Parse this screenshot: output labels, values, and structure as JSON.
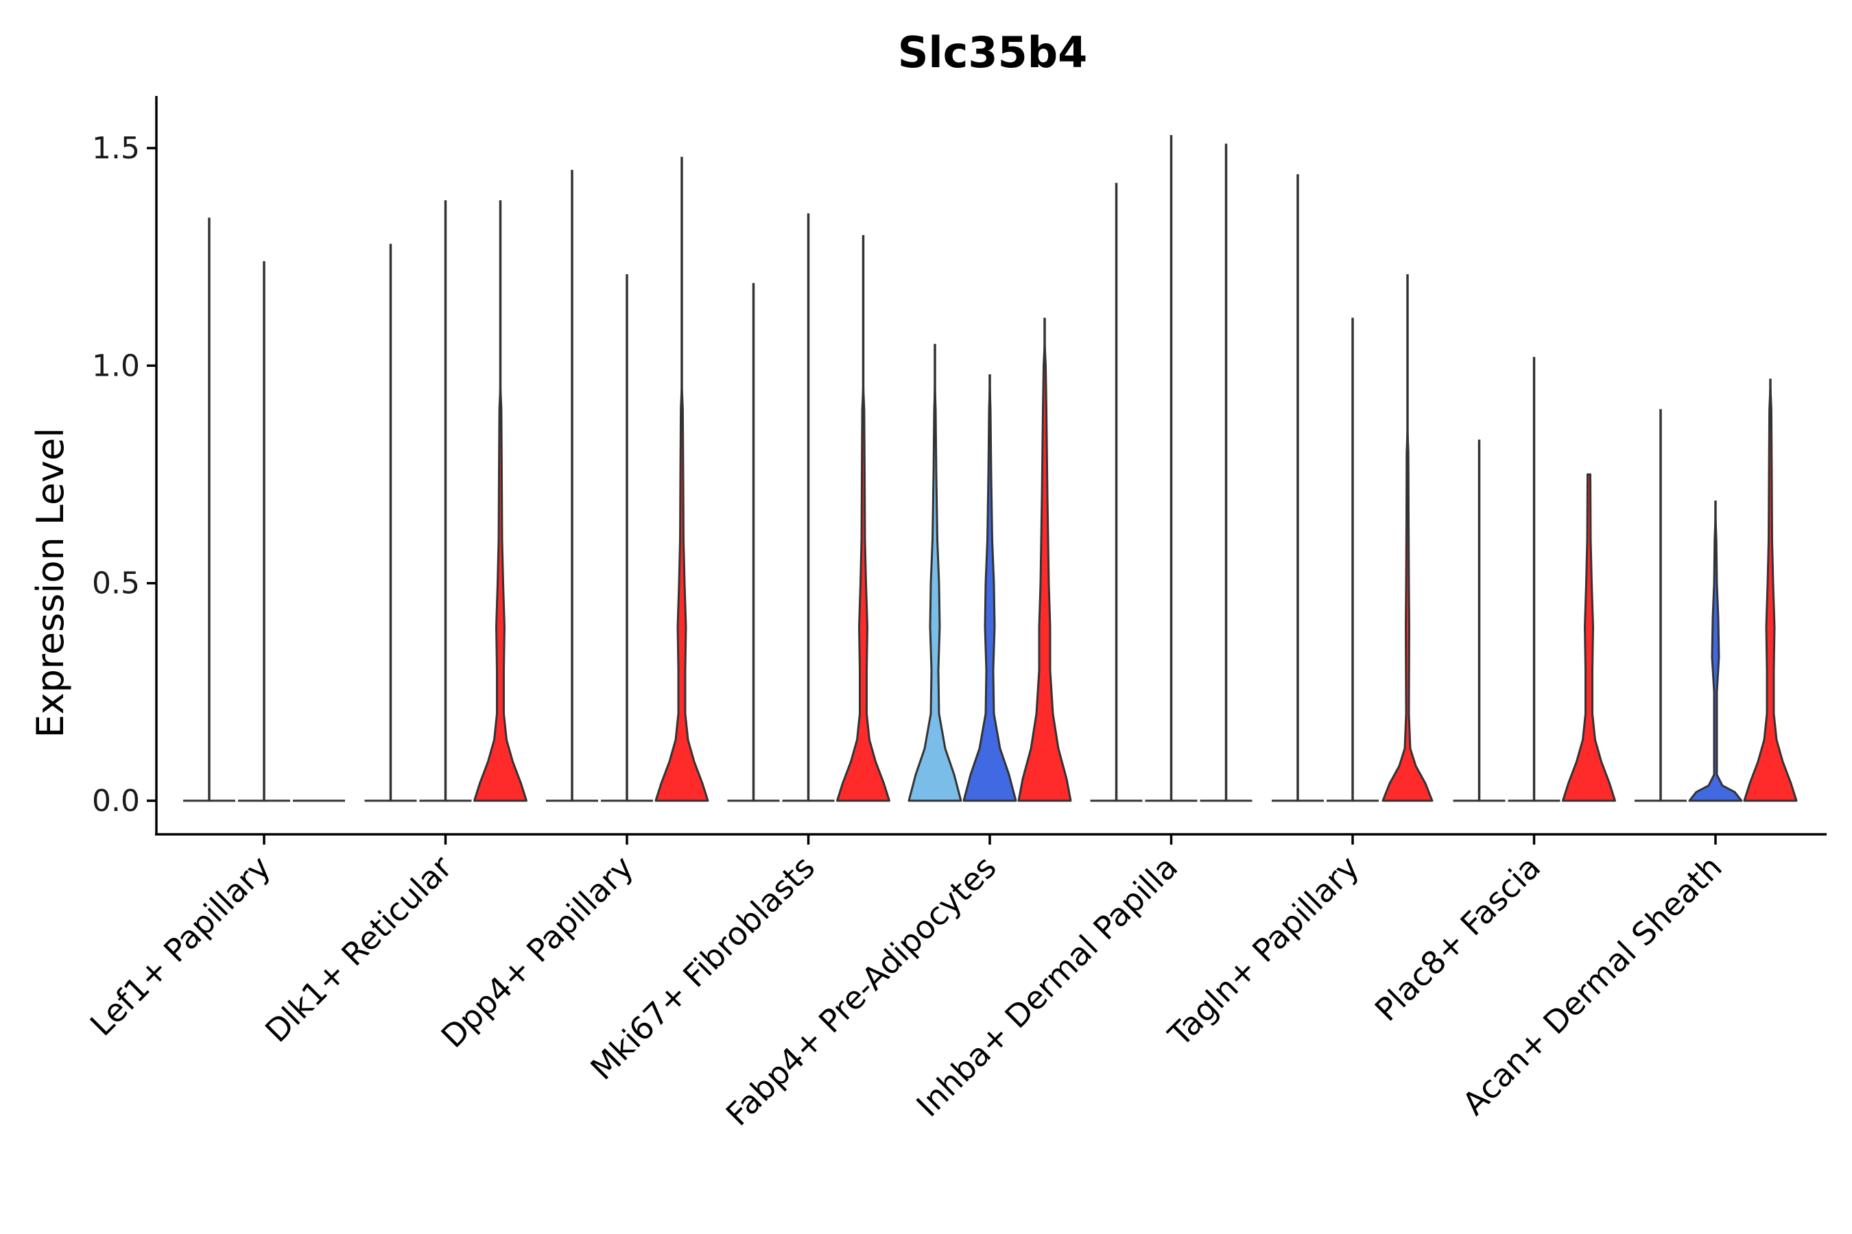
{
  "chart_data": {
    "type": "violin",
    "title": "Slc35b4",
    "xlabel": "",
    "ylabel": "Expression Level",
    "ylim": [
      -0.08,
      1.62
    ],
    "yticks": [
      0.0,
      0.5,
      1.0,
      1.5
    ],
    "ytick_labels": [
      "0.0",
      "0.5",
      "1.0",
      "1.5"
    ],
    "grid": false,
    "legend": "none",
    "categories": [
      "Lef1+ Papillary",
      "Dlk1+ Reticular",
      "Dpp4+ Papillary",
      "Mki67+ Fibroblasts",
      "Fabp4+ Pre-Adipocytes",
      "Inhba+ Dermal Papilla",
      "Tagln+ Papillary",
      "Plac8+ Fascia",
      "Acan+ Dermal Sheath"
    ],
    "series_colors": [
      "#7bbde9",
      "#4169e1",
      "#ff2a2a"
    ],
    "violins": [
      [
        {
          "max": 1.34,
          "color": "#7bbde9",
          "shape": "flat"
        },
        {
          "max": 1.24,
          "color": "#4169e1",
          "shape": "flat"
        },
        {
          "max": 0.0,
          "color": "#ff2a2a",
          "shape": "flat"
        }
      ],
      [
        {
          "max": 1.28,
          "color": "#7bbde9",
          "shape": "flat"
        },
        {
          "max": 1.38,
          "color": "#4169e1",
          "shape": "flat"
        },
        {
          "max": 1.38,
          "color": "#ff2a2a",
          "shape": "red"
        }
      ],
      [
        {
          "max": 1.45,
          "color": "#7bbde9",
          "shape": "flat"
        },
        {
          "max": 1.21,
          "color": "#4169e1",
          "shape": "flat"
        },
        {
          "max": 1.48,
          "color": "#ff2a2a",
          "shape": "red"
        }
      ],
      [
        {
          "max": 1.19,
          "color": "#7bbde9",
          "shape": "flat"
        },
        {
          "max": 1.35,
          "color": "#4169e1",
          "shape": "flat"
        },
        {
          "max": 1.3,
          "color": "#ff2a2a",
          "shape": "red"
        }
      ],
      [
        {
          "max": 1.05,
          "color": "#7bbde9",
          "shape": "mid"
        },
        {
          "max": 0.98,
          "color": "#4169e1",
          "shape": "mid"
        },
        {
          "max": 1.11,
          "color": "#ff2a2a",
          "shape": "wide"
        }
      ],
      [
        {
          "max": 1.42,
          "color": "#7bbde9",
          "shape": "flat"
        },
        {
          "max": 1.53,
          "color": "#4169e1",
          "shape": "flat"
        },
        {
          "max": 1.51,
          "color": "#ff2a2a",
          "shape": "flat"
        }
      ],
      [
        {
          "max": 1.44,
          "color": "#7bbde9",
          "shape": "flat"
        },
        {
          "max": 1.11,
          "color": "#4169e1",
          "shape": "flat"
        },
        {
          "max": 1.21,
          "color": "#ff2a2a",
          "shape": "redsmall"
        }
      ],
      [
        {
          "max": 0.83,
          "color": "#7bbde9",
          "shape": "flat"
        },
        {
          "max": 1.02,
          "color": "#4169e1",
          "shape": "flat"
        },
        {
          "max": 0.75,
          "color": "#ff2a2a",
          "shape": "red"
        }
      ],
      [
        {
          "max": 0.9,
          "color": "#7bbde9",
          "shape": "flat"
        },
        {
          "max": 0.69,
          "color": "#4169e1",
          "shape": "small"
        },
        {
          "max": 0.97,
          "color": "#ff2a2a",
          "shape": "red"
        }
      ]
    ]
  }
}
